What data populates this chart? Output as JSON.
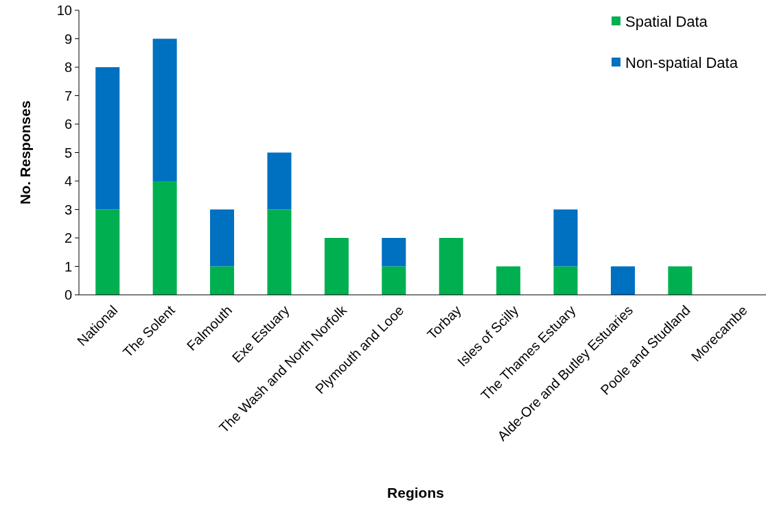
{
  "chart_data": {
    "type": "bar",
    "stacked": true,
    "xlabel": "Regions",
    "ylabel": "No. Responses",
    "categories": [
      "National",
      "The Solent",
      "Falmouth",
      "Exe Estuary",
      "The Wash and North Norfolk",
      "Plymouth and Looe",
      "Torbay",
      "Isles of Scilly",
      "The Thames Estuary",
      "Alde-Ore and Butley Estuaries",
      "Poole and Studland",
      "Morecambe"
    ],
    "series": [
      {
        "name": "Spatial Data",
        "color": "#00b050",
        "values": [
          3,
          4,
          1,
          3,
          2,
          1,
          2,
          1,
          1,
          0,
          1,
          0
        ]
      },
      {
        "name": "Non-spatial Data",
        "color": "#0070c0",
        "values": [
          5,
          5,
          2,
          2,
          0,
          1,
          0,
          0,
          2,
          1,
          0,
          0
        ]
      }
    ],
    "ylim": [
      0,
      10
    ],
    "yticks": [
      0,
      1,
      2,
      3,
      4,
      5,
      6,
      7,
      8,
      9,
      10
    ],
    "grid": false,
    "legend": "top right"
  }
}
